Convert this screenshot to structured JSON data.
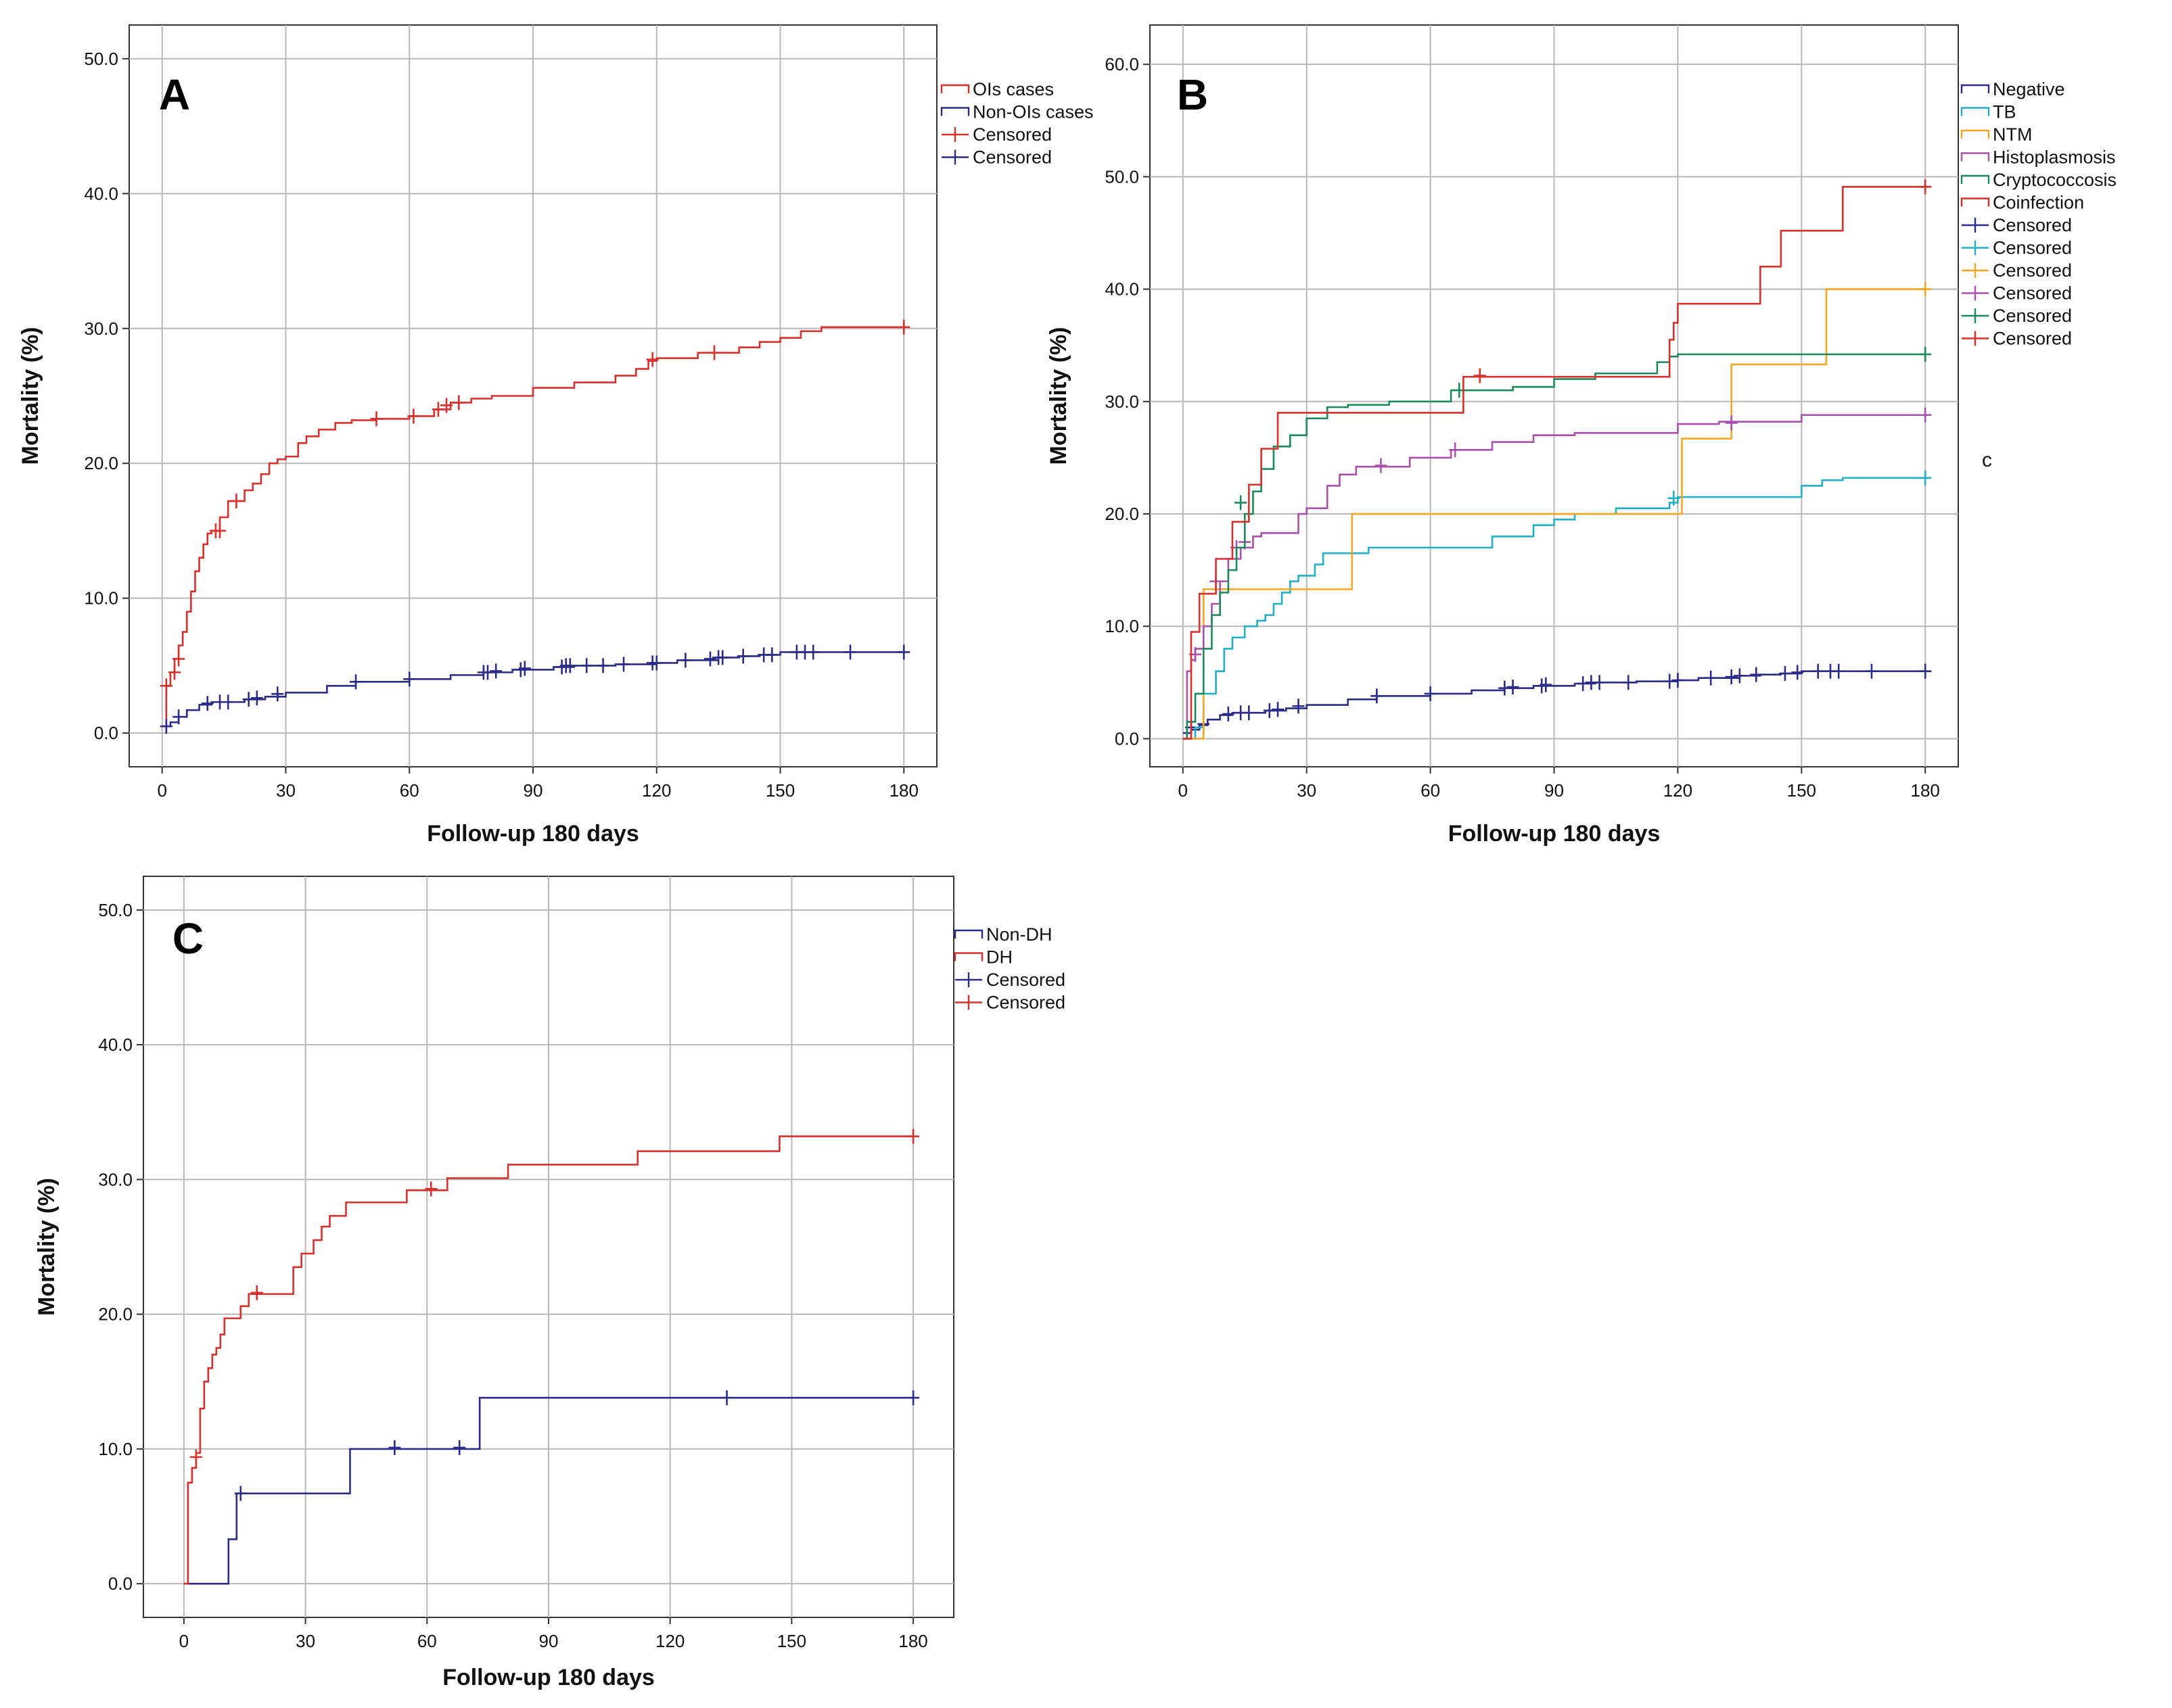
{
  "side_note": "c",
  "chart_data": [
    {
      "panel": "A",
      "type": "line",
      "subtype": "kaplan-meier-step",
      "title": "",
      "xlabel": "Follow-up 180 days",
      "ylabel": "Mortality (%)",
      "xlim": [
        -8,
        188
      ],
      "ylim": [
        -2.5,
        52.5
      ],
      "xticks": [
        0,
        30,
        60,
        90,
        120,
        150,
        180
      ],
      "xtick_labels": [
        "0",
        "30",
        "60",
        "90",
        "120",
        "150",
        "180"
      ],
      "yticks": [
        0,
        10,
        20,
        30,
        40,
        50
      ],
      "ytick_labels": [
        "0.0",
        "10.0",
        "20.0",
        "30.0",
        "40.0",
        "50.0"
      ],
      "grid": true,
      "legend_position": "right-outside-top",
      "series": [
        {
          "name": "OIs cases",
          "color": "#d9302c",
          "x": [
            0,
            1,
            2,
            3,
            4,
            5,
            6,
            7,
            8,
            9,
            10,
            11,
            12,
            14,
            16,
            18,
            20,
            22,
            24,
            26,
            28,
            30,
            33,
            35,
            38,
            42,
            46,
            52,
            60,
            66,
            70,
            75,
            80,
            90,
            100,
            110,
            115,
            118,
            120,
            130,
            140,
            145,
            150,
            155,
            160,
            180
          ],
          "y": [
            0.5,
            3.5,
            4.5,
            5.5,
            6.5,
            7.5,
            9,
            10.5,
            12,
            13,
            14,
            14.8,
            15,
            16,
            17.2,
            17.2,
            18,
            18.5,
            19.2,
            20,
            20.3,
            20.5,
            21.5,
            22,
            22.5,
            23,
            23.2,
            23.3,
            23.5,
            24,
            24.5,
            24.8,
            25,
            25.6,
            26,
            26.5,
            27,
            27.6,
            27.8,
            28.2,
            28.6,
            29,
            29.3,
            29.8,
            30.1,
            30.1
          ],
          "censored_x": [
            1,
            3,
            4,
            13,
            14,
            18,
            52,
            61,
            67,
            69,
            72,
            119,
            134,
            180
          ],
          "censored_y": [
            3.5,
            4.5,
            5.5,
            15,
            15,
            17.2,
            23.3,
            23.5,
            24,
            24.3,
            24.5,
            27.7,
            28.2,
            30.1
          ]
        },
        {
          "name": "Non-OIs cases",
          "color": "#2b2c8a",
          "x": [
            0,
            2,
            4,
            6,
            9,
            12,
            20,
            25,
            30,
            40,
            47,
            60,
            70,
            78,
            85,
            95,
            100,
            110,
            120,
            125,
            135,
            140,
            145,
            150,
            160,
            180
          ],
          "y": [
            0.5,
            0.8,
            1.2,
            1.7,
            2.1,
            2.3,
            2.5,
            2.7,
            3,
            3.5,
            3.8,
            4,
            4.3,
            4.5,
            4.7,
            4.9,
            5,
            5.1,
            5.2,
            5.4,
            5.6,
            5.7,
            5.8,
            6,
            6,
            6
          ],
          "censored_x": [
            1,
            4,
            11,
            14,
            16,
            21,
            23,
            28,
            47,
            60,
            78,
            79,
            81,
            87,
            88,
            97,
            98,
            99,
            103,
            107,
            112,
            119,
            120,
            127,
            133,
            135,
            136,
            141,
            146,
            148,
            154,
            156,
            158,
            167,
            180
          ],
          "censored_y": [
            0.5,
            1.2,
            2.2,
            2.3,
            2.3,
            2.5,
            2.6,
            2.9,
            3.8,
            4,
            4.5,
            4.5,
            4.6,
            4.7,
            4.8,
            4.9,
            5,
            5,
            5,
            5,
            5.1,
            5.2,
            5.2,
            5.4,
            5.5,
            5.6,
            5.6,
            5.7,
            5.8,
            5.8,
            6,
            6,
            6,
            6,
            6
          ]
        }
      ],
      "legend": [
        {
          "label": "OIs cases",
          "kind": "line",
          "color": "#d9302c"
        },
        {
          "label": "Non-OIs cases",
          "kind": "line",
          "color": "#2b2c8a"
        },
        {
          "label": "Censored",
          "kind": "censor",
          "color": "#d9302c"
        },
        {
          "label": "Censored",
          "kind": "censor",
          "color": "#2b2c8a"
        }
      ]
    },
    {
      "panel": "B",
      "type": "line",
      "subtype": "kaplan-meier-step",
      "title": "",
      "xlabel": "Follow-up 180 days",
      "ylabel": "Mortality (%)",
      "xlim": [
        -8,
        188
      ],
      "ylim": [
        -2.5,
        63.5
      ],
      "xticks": [
        0,
        30,
        60,
        90,
        120,
        150,
        180
      ],
      "xtick_labels": [
        "0",
        "30",
        "60",
        "90",
        "120",
        "150",
        "180"
      ],
      "yticks": [
        0,
        10,
        20,
        30,
        40,
        50,
        60
      ],
      "ytick_labels": [
        "0.0",
        "10.0",
        "20.0",
        "30.0",
        "40.0",
        "50.0",
        "60.0"
      ],
      "grid": true,
      "legend_position": "right-outside-top",
      "series": [
        {
          "name": "Negative",
          "color": "#2b2c8a",
          "x": [
            0,
            2,
            4,
            6,
            9,
            12,
            20,
            25,
            30,
            40,
            47,
            60,
            70,
            78,
            85,
            95,
            100,
            110,
            120,
            125,
            135,
            140,
            145,
            150,
            160,
            180
          ],
          "y": [
            0.5,
            0.8,
            1.2,
            1.7,
            2.1,
            2.3,
            2.5,
            2.7,
            3,
            3.5,
            3.8,
            4,
            4.3,
            4.5,
            4.7,
            4.9,
            5,
            5.1,
            5.2,
            5.4,
            5.6,
            5.7,
            5.8,
            6,
            6,
            6
          ],
          "censored_x": [
            2,
            5,
            11,
            14,
            16,
            21,
            23,
            28,
            47,
            60,
            78,
            80,
            87,
            88,
            97,
            99,
            101,
            108,
            118,
            120,
            128,
            133,
            135,
            139,
            146,
            149,
            154,
            157,
            159,
            167,
            180
          ],
          "censored_y": [
            1,
            1.3,
            2.2,
            2.3,
            2.3,
            2.5,
            2.6,
            2.9,
            3.8,
            4,
            4.5,
            4.6,
            4.7,
            4.8,
            4.9,
            5,
            5,
            5,
            5.1,
            5.2,
            5.4,
            5.5,
            5.6,
            5.7,
            5.8,
            5.9,
            6,
            6,
            6,
            6,
            6
          ]
        },
        {
          "name": "TB",
          "color": "#22b0c8",
          "x": [
            0,
            3,
            5,
            8,
            10,
            12,
            15,
            18,
            20,
            22,
            24,
            26,
            28,
            30,
            32,
            34,
            40,
            45,
            50,
            60,
            75,
            85,
            90,
            95,
            105,
            110,
            118,
            120,
            125,
            150,
            155,
            160,
            180
          ],
          "y": [
            0,
            1,
            4,
            6,
            8,
            9,
            10,
            10.5,
            11,
            12,
            13,
            14,
            14.5,
            14.5,
            15.5,
            16.5,
            16.5,
            17,
            17,
            17,
            18,
            19,
            19.5,
            20,
            20.5,
            20.5,
            21,
            21.5,
            21.5,
            22.5,
            23,
            23.2,
            23.2
          ],
          "censored_x": [
            119,
            180
          ],
          "censored_y": [
            21.4,
            23.2
          ]
        },
        {
          "name": "NTM",
          "color": "#f5a623",
          "x": [
            0,
            5,
            10,
            20,
            30,
            41,
            60,
            90,
            110,
            120,
            121,
            133,
            140,
            156,
            180
          ],
          "y": [
            0,
            13.3,
            13.3,
            13.3,
            13.3,
            20,
            20,
            20,
            20,
            20,
            26.7,
            33.3,
            33.3,
            40,
            40
          ],
          "censored_x": [
            180
          ],
          "censored_y": [
            40
          ]
        },
        {
          "name": "Histoplasmosis",
          "color": "#a94fae",
          "x": [
            0,
            1,
            2,
            3,
            5,
            7,
            9,
            11,
            14,
            17,
            19,
            28,
            30,
            35,
            38,
            42,
            55,
            65,
            75,
            85,
            95,
            120,
            130,
            150,
            180
          ],
          "y": [
            0,
            6,
            7,
            8,
            10,
            12,
            14,
            16,
            17,
            18,
            18.3,
            20,
            20.5,
            22.5,
            23.5,
            24.2,
            25,
            25.7,
            26.4,
            27,
            27.2,
            28,
            28.2,
            28.8,
            28.8
          ],
          "censored_x": [
            3,
            8,
            13,
            15,
            48,
            66,
            133,
            180
          ],
          "censored_y": [
            7.5,
            14,
            17,
            17.5,
            24.3,
            25.7,
            28.1,
            28.8
          ]
        },
        {
          "name": "Cryptococcosis",
          "color": "#1a8a5a",
          "x": [
            0,
            1,
            3,
            5,
            7,
            9,
            11,
            13,
            15,
            17,
            19,
            22,
            26,
            30,
            35,
            40,
            50,
            65,
            80,
            90,
            100,
            115,
            118,
            120,
            180
          ],
          "y": [
            0,
            1.5,
            4,
            8,
            11,
            13,
            15,
            17,
            20,
            22,
            24,
            26,
            27,
            28.5,
            29.5,
            29.7,
            30,
            31,
            31.3,
            32,
            32.5,
            33.5,
            34,
            34.2,
            34.2
          ],
          "censored_x": [
            14,
            67,
            180
          ],
          "censored_y": [
            21,
            31,
            34.2
          ]
        },
        {
          "name": "Coinfection",
          "color": "#d9302c",
          "x": [
            0,
            2,
            4,
            6,
            8,
            10,
            12,
            14,
            16,
            19,
            23,
            40,
            68,
            90,
            117,
            118,
            119,
            120,
            140,
            145,
            160,
            180
          ],
          "y": [
            0,
            9.5,
            12.9,
            12.9,
            16,
            16,
            19.3,
            19.3,
            22.6,
            25.8,
            29,
            29,
            32.2,
            32.2,
            32.2,
            35.5,
            37,
            38.7,
            42,
            45.2,
            49.1,
            49.1
          ],
          "censored_x": [
            72,
            180
          ],
          "censored_y": [
            32.3,
            49.1
          ]
        }
      ],
      "legend": [
        {
          "label": "Negative",
          "kind": "line",
          "color": "#2b2c8a"
        },
        {
          "label": "TB",
          "kind": "line",
          "color": "#22b0c8"
        },
        {
          "label": "NTM",
          "kind": "line",
          "color": "#f5a623"
        },
        {
          "label": "Histoplasmosis",
          "kind": "line",
          "color": "#a94fae"
        },
        {
          "label": "Cryptococcosis",
          "kind": "line",
          "color": "#1a8a5a"
        },
        {
          "label": "Coinfection",
          "kind": "line",
          "color": "#d9302c"
        },
        {
          "label": "Censored",
          "kind": "censor",
          "color": "#2b2c8a"
        },
        {
          "label": "Censored",
          "kind": "censor",
          "color": "#22b0c8"
        },
        {
          "label": "Censored",
          "kind": "censor",
          "color": "#f5a623"
        },
        {
          "label": "Censored",
          "kind": "censor",
          "color": "#a94fae"
        },
        {
          "label": "Censored",
          "kind": "censor",
          "color": "#1a8a5a"
        },
        {
          "label": "Censored",
          "kind": "censor",
          "color": "#d9302c"
        }
      ]
    },
    {
      "panel": "C",
      "type": "line",
      "subtype": "kaplan-meier-step",
      "title": "",
      "xlabel": "Follow-up 180 days",
      "ylabel": "Mortality (%)",
      "xlim": [
        -10,
        190
      ],
      "ylim": [
        -2.5,
        52.5
      ],
      "xticks": [
        0,
        30,
        60,
        90,
        120,
        150,
        180
      ],
      "xtick_labels": [
        "0",
        "30",
        "60",
        "90",
        "120",
        "150",
        "180"
      ],
      "yticks": [
        0,
        10,
        20,
        30,
        40,
        50
      ],
      "ytick_labels": [
        "0.0",
        "10.0",
        "20.0",
        "30.0",
        "40.0",
        "50.0"
      ],
      "grid": true,
      "legend_position": "right-outside-top",
      "series": [
        {
          "name": "Non-DH",
          "color": "#2b2c8a",
          "x": [
            0,
            11,
            13,
            41,
            73,
            180
          ],
          "y": [
            0,
            3.3,
            6.7,
            10,
            13.8,
            13.8
          ],
          "censored_x": [
            14,
            52,
            68,
            134,
            180
          ],
          "censored_y": [
            6.7,
            10.1,
            10.1,
            13.8,
            13.8
          ]
        },
        {
          "name": "DH",
          "color": "#d9302c",
          "x": [
            0,
            1,
            2,
            3,
            4,
            5,
            6,
            7,
            8,
            9,
            10,
            14,
            16,
            27,
            29,
            32,
            34,
            36,
            40,
            55,
            65,
            80,
            112,
            147,
            180
          ],
          "y": [
            0,
            7.5,
            8.6,
            9.7,
            13,
            15,
            16,
            17,
            17.5,
            18.5,
            19.7,
            20.6,
            21.5,
            23.5,
            24.5,
            25.5,
            26.5,
            27.3,
            28.3,
            29.2,
            30.1,
            31.1,
            32.1,
            33.2,
            33.2
          ],
          "censored_x": [
            3,
            18,
            61,
            180
          ],
          "censored_y": [
            9.4,
            21.6,
            29.3,
            33.2
          ]
        }
      ],
      "legend": [
        {
          "label": "Non-DH",
          "kind": "line",
          "color": "#2b2c8a"
        },
        {
          "label": "DH",
          "kind": "line",
          "color": "#d9302c"
        },
        {
          "label": "Censored",
          "kind": "censor",
          "color": "#2b2c8a"
        },
        {
          "label": "Censored",
          "kind": "censor",
          "color": "#d9302c"
        }
      ]
    }
  ]
}
